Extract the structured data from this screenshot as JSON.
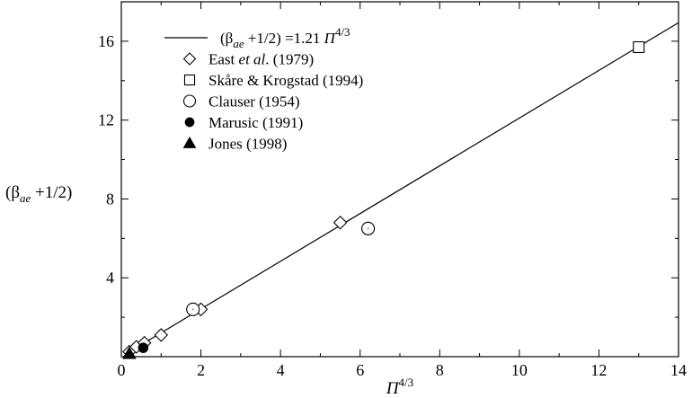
{
  "chart_data": {
    "type": "scatter",
    "title": "",
    "xlabel": {
      "base": "Π",
      "sup": "4/3"
    },
    "ylabel": {
      "open": "(β",
      "sub": "ae",
      "rest": " +1/2)"
    },
    "xlim": [
      0,
      14
    ],
    "ylim": [
      0,
      18
    ],
    "x_ticks": [
      0,
      2,
      4,
      6,
      8,
      10,
      12,
      14
    ],
    "y_ticks": [
      4,
      8,
      12,
      16
    ],
    "grid": false,
    "legend_position": "top-left",
    "fit_line": {
      "label": {
        "open": "(β",
        "sub": "ae",
        "mid": " +1/2) =1.21 ",
        "var": "Π",
        "sup": "4/3"
      },
      "slope": 1.21,
      "intercept": 0,
      "x_range": [
        0.2,
        14
      ]
    },
    "series": [
      {
        "name": {
          "pre": "East ",
          "it": "et al",
          "post": ". (1979)"
        },
        "marker": "diamond-open",
        "points": [
          [
            0.2,
            0.25
          ],
          [
            0.38,
            0.5
          ],
          [
            0.58,
            0.7
          ],
          [
            1.0,
            1.1
          ],
          [
            2.0,
            2.4
          ],
          [
            5.5,
            6.8
          ]
        ]
      },
      {
        "name": "Skåre & Krogstad (1994)",
        "marker": "square-open",
        "points": [
          [
            13.0,
            15.7
          ]
        ]
      },
      {
        "name": "Clauser (1954)",
        "marker": "circle-open",
        "points": [
          [
            1.8,
            2.4
          ],
          [
            6.2,
            6.5
          ]
        ]
      },
      {
        "name": "Marusic (1991)",
        "marker": "circle-filled",
        "points": [
          [
            0.55,
            0.45
          ]
        ]
      },
      {
        "name": "Jones (1998)",
        "marker": "triangle-filled",
        "points": [
          [
            0.2,
            0.15
          ]
        ]
      }
    ]
  }
}
